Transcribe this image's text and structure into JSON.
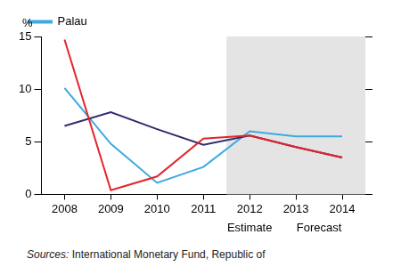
{
  "chart_data": {
    "type": "line",
    "y_label": "%",
    "categories": [
      "2008",
      "2009",
      "2010",
      "2011",
      "2012",
      "2013",
      "2014"
    ],
    "series": [
      {
        "name": "Palau",
        "color": "#3ca9e2",
        "values": [
          10.1,
          4.8,
          1.1,
          2.6,
          6.0,
          5.5,
          5.5
        ]
      },
      {
        "color": "#2e2d6e",
        "values": [
          6.5,
          7.8,
          6.2,
          4.7,
          5.6,
          4.5,
          3.5
        ]
      },
      {
        "color": "#e3242b",
        "values": [
          14.7,
          0.4,
          1.7,
          5.3,
          5.6,
          4.5,
          3.5
        ]
      }
    ],
    "ylim": [
      0,
      15
    ],
    "yticks": [
      0,
      5,
      10,
      15
    ],
    "grid": false,
    "legend": "top-left",
    "shaded_region": [
      "2012",
      "2014"
    ],
    "annotations": [
      {
        "text": "Estimate",
        "x": [
          "2012"
        ]
      },
      {
        "text": "Forecast",
        "x": [
          "2013",
          "2014"
        ]
      }
    ],
    "source": "Sources: International Monetary Fund, Republic of"
  }
}
